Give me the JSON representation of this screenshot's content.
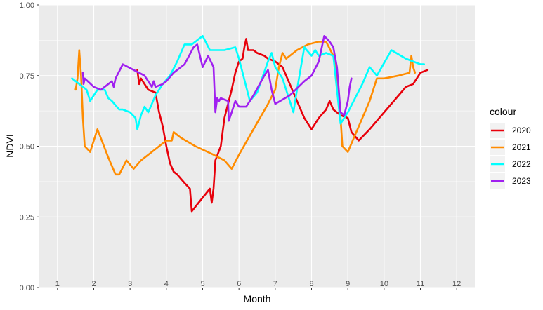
{
  "chart_data": {
    "type": "line",
    "xlabel": "Month",
    "ylabel": "NDVI",
    "xlim": [
      0.5,
      12.5
    ],
    "ylim": [
      0,
      1
    ],
    "grid": true,
    "legend_position": "right",
    "legend_title": "colour",
    "month_labels": [
      "1",
      "2",
      "3",
      "4",
      "5",
      "6",
      "7",
      "8",
      "9",
      "10",
      "11",
      "12"
    ],
    "y_ticks": [
      0,
      0.25,
      0.5,
      0.75,
      1
    ],
    "y_tick_labels": [
      "0.00",
      "0.25",
      "0.50",
      "0.75",
      "1.00"
    ],
    "series": [
      {
        "name": "2020",
        "color": "#E8000B",
        "points": [
          [
            3.2,
            0.77
          ],
          [
            3.25,
            0.72
          ],
          [
            3.3,
            0.74
          ],
          [
            3.4,
            0.72
          ],
          [
            3.5,
            0.7
          ],
          [
            3.7,
            0.69
          ],
          [
            3.8,
            0.62
          ],
          [
            3.9,
            0.57
          ],
          [
            4.0,
            0.5
          ],
          [
            4.1,
            0.44
          ],
          [
            4.2,
            0.41
          ],
          [
            4.3,
            0.4
          ],
          [
            4.5,
            0.37
          ],
          [
            4.65,
            0.35
          ],
          [
            4.7,
            0.27
          ],
          [
            5.2,
            0.35
          ],
          [
            5.25,
            0.3
          ],
          [
            5.3,
            0.35
          ],
          [
            5.35,
            0.45
          ],
          [
            5.5,
            0.5
          ],
          [
            5.6,
            0.6
          ],
          [
            5.8,
            0.7
          ],
          [
            5.9,
            0.76
          ],
          [
            6.0,
            0.8
          ],
          [
            6.1,
            0.81
          ],
          [
            6.15,
            0.85
          ],
          [
            6.2,
            0.88
          ],
          [
            6.25,
            0.84
          ],
          [
            6.4,
            0.84
          ],
          [
            6.5,
            0.83
          ],
          [
            6.7,
            0.82
          ],
          [
            6.8,
            0.81
          ],
          [
            7.0,
            0.8
          ],
          [
            7.2,
            0.78
          ],
          [
            7.4,
            0.72
          ],
          [
            7.6,
            0.66
          ],
          [
            7.8,
            0.6
          ],
          [
            8.0,
            0.56
          ],
          [
            8.2,
            0.6
          ],
          [
            8.4,
            0.63
          ],
          [
            8.5,
            0.66
          ],
          [
            8.6,
            0.63
          ],
          [
            8.8,
            0.61
          ],
          [
            9.0,
            0.6
          ],
          [
            9.1,
            0.55
          ],
          [
            9.3,
            0.52
          ],
          [
            9.6,
            0.56
          ],
          [
            10.0,
            0.62
          ],
          [
            10.4,
            0.68
          ],
          [
            10.6,
            0.71
          ],
          [
            10.8,
            0.72
          ],
          [
            10.9,
            0.74
          ],
          [
            11.0,
            0.76
          ],
          [
            11.2,
            0.77
          ]
        ]
      },
      {
        "name": "2021",
        "color": "#FF8C00",
        "points": [
          [
            1.5,
            0.7
          ],
          [
            1.55,
            0.74
          ],
          [
            1.6,
            0.84
          ],
          [
            1.65,
            0.75
          ],
          [
            1.7,
            0.6
          ],
          [
            1.75,
            0.5
          ],
          [
            1.9,
            0.48
          ],
          [
            2.1,
            0.56
          ],
          [
            2.4,
            0.46
          ],
          [
            2.6,
            0.4
          ],
          [
            2.7,
            0.4
          ],
          [
            2.9,
            0.45
          ],
          [
            3.1,
            0.42
          ],
          [
            3.3,
            0.45
          ],
          [
            3.6,
            0.48
          ],
          [
            3.8,
            0.5
          ],
          [
            4.0,
            0.52
          ],
          [
            4.15,
            0.52
          ],
          [
            4.2,
            0.55
          ],
          [
            4.4,
            0.53
          ],
          [
            4.8,
            0.5
          ],
          [
            5.3,
            0.47
          ],
          [
            5.6,
            0.45
          ],
          [
            5.8,
            0.42
          ],
          [
            6.0,
            0.47
          ],
          [
            6.4,
            0.56
          ],
          [
            6.8,
            0.65
          ],
          [
            7.0,
            0.7
          ],
          [
            7.1,
            0.78
          ],
          [
            7.2,
            0.83
          ],
          [
            7.3,
            0.81
          ],
          [
            7.6,
            0.84
          ],
          [
            7.9,
            0.86
          ],
          [
            8.2,
            0.87
          ],
          [
            8.4,
            0.87
          ],
          [
            8.6,
            0.82
          ],
          [
            8.7,
            0.74
          ],
          [
            8.8,
            0.6
          ],
          [
            8.85,
            0.5
          ],
          [
            9.0,
            0.48
          ],
          [
            9.2,
            0.54
          ],
          [
            9.6,
            0.66
          ],
          [
            9.8,
            0.74
          ],
          [
            10.0,
            0.74
          ],
          [
            10.4,
            0.75
          ],
          [
            10.7,
            0.76
          ],
          [
            10.75,
            0.82
          ],
          [
            10.8,
            0.78
          ],
          [
            10.85,
            0.76
          ]
        ]
      },
      {
        "name": "2022",
        "color": "#00FFFF",
        "points": [
          [
            1.4,
            0.74
          ],
          [
            1.6,
            0.72
          ],
          [
            1.8,
            0.7
          ],
          [
            1.9,
            0.66
          ],
          [
            2.1,
            0.7
          ],
          [
            2.3,
            0.7
          ],
          [
            2.4,
            0.67
          ],
          [
            2.5,
            0.66
          ],
          [
            2.7,
            0.63
          ],
          [
            2.8,
            0.63
          ],
          [
            3.0,
            0.62
          ],
          [
            3.15,
            0.6
          ],
          [
            3.2,
            0.56
          ],
          [
            3.3,
            0.61
          ],
          [
            3.4,
            0.64
          ],
          [
            3.5,
            0.62
          ],
          [
            3.6,
            0.65
          ],
          [
            3.7,
            0.68
          ],
          [
            3.9,
            0.72
          ],
          [
            4.1,
            0.75
          ],
          [
            4.3,
            0.8
          ],
          [
            4.5,
            0.86
          ],
          [
            4.7,
            0.86
          ],
          [
            4.8,
            0.87
          ],
          [
            5.0,
            0.89
          ],
          [
            5.2,
            0.84
          ],
          [
            5.4,
            0.84
          ],
          [
            5.6,
            0.84
          ],
          [
            5.9,
            0.85
          ],
          [
            6.0,
            0.81
          ],
          [
            6.3,
            0.66
          ],
          [
            6.5,
            0.69
          ],
          [
            6.8,
            0.8
          ],
          [
            6.9,
            0.83
          ],
          [
            7.0,
            0.78
          ],
          [
            7.2,
            0.74
          ],
          [
            7.35,
            0.68
          ],
          [
            7.5,
            0.62
          ],
          [
            7.6,
            0.7
          ],
          [
            7.8,
            0.85
          ],
          [
            8.0,
            0.82
          ],
          [
            8.1,
            0.84
          ],
          [
            8.2,
            0.82
          ],
          [
            8.4,
            0.83
          ],
          [
            8.6,
            0.82
          ],
          [
            8.8,
            0.58
          ],
          [
            9.0,
            0.62
          ],
          [
            9.4,
            0.72
          ],
          [
            9.6,
            0.78
          ],
          [
            9.8,
            0.75
          ],
          [
            10.2,
            0.84
          ],
          [
            10.6,
            0.81
          ],
          [
            11.0,
            0.79
          ],
          [
            11.1,
            0.79
          ]
        ]
      },
      {
        "name": "2023",
        "color": "#A020F0",
        "points": [
          [
            1.7,
            0.76
          ],
          [
            1.72,
            0.72
          ],
          [
            1.75,
            0.74
          ],
          [
            2.0,
            0.71
          ],
          [
            2.2,
            0.7
          ],
          [
            2.5,
            0.73
          ],
          [
            2.55,
            0.71
          ],
          [
            2.6,
            0.74
          ],
          [
            2.8,
            0.79
          ],
          [
            3.1,
            0.77
          ],
          [
            3.4,
            0.75
          ],
          [
            3.6,
            0.71
          ],
          [
            3.65,
            0.73
          ],
          [
            3.7,
            0.71
          ],
          [
            3.9,
            0.72
          ],
          [
            4.0,
            0.73
          ],
          [
            4.2,
            0.76
          ],
          [
            4.5,
            0.79
          ],
          [
            4.75,
            0.85
          ],
          [
            4.85,
            0.86
          ],
          [
            5.0,
            0.78
          ],
          [
            5.15,
            0.82
          ],
          [
            5.3,
            0.78
          ],
          [
            5.35,
            0.62
          ],
          [
            5.4,
            0.67
          ],
          [
            5.45,
            0.66
          ],
          [
            5.5,
            0.67
          ],
          [
            5.7,
            0.66
          ],
          [
            5.72,
            0.59
          ],
          [
            5.8,
            0.62
          ],
          [
            5.9,
            0.66
          ],
          [
            6.0,
            0.64
          ],
          [
            6.2,
            0.64
          ],
          [
            6.4,
            0.68
          ],
          [
            6.7,
            0.75
          ],
          [
            6.8,
            0.77
          ],
          [
            6.9,
            0.7
          ],
          [
            7.0,
            0.65
          ],
          [
            7.4,
            0.68
          ],
          [
            7.8,
            0.73
          ],
          [
            8.0,
            0.75
          ],
          [
            8.2,
            0.8
          ],
          [
            8.3,
            0.86
          ],
          [
            8.35,
            0.89
          ],
          [
            8.5,
            0.87
          ],
          [
            8.6,
            0.85
          ],
          [
            8.7,
            0.78
          ],
          [
            8.8,
            0.62
          ],
          [
            8.9,
            0.61
          ],
          [
            9.0,
            0.66
          ],
          [
            9.05,
            0.71
          ],
          [
            9.1,
            0.74
          ]
        ]
      }
    ]
  }
}
